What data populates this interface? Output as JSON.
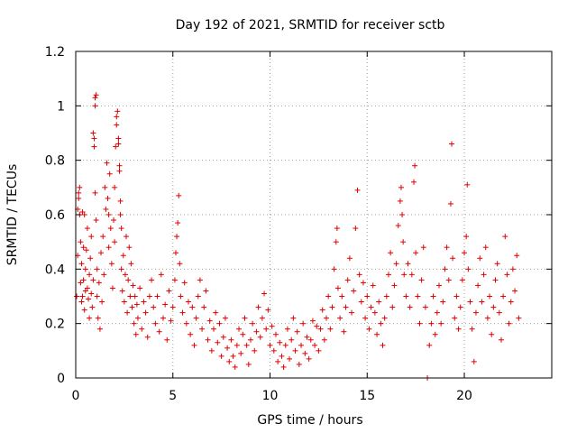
{
  "chart_data": {
    "type": "scatter",
    "title": "Day 192 of 2021, SRMTID for receiver sctb",
    "xlabel": "GPS time / hours",
    "ylabel": "SRMTID / TECUs",
    "xlim": [
      0,
      24.5
    ],
    "ylim": [
      0,
      1.2
    ],
    "x_ticks": [
      0,
      5,
      10,
      15,
      20
    ],
    "x_tick_labels": [
      "0",
      "5",
      "10",
      "15",
      "20"
    ],
    "y_ticks": [
      0,
      0.2,
      0.4,
      0.6,
      0.8,
      1,
      1.2
    ],
    "y_tick_labels": [
      "0",
      "0.2",
      "0.4",
      "0.6",
      "0.8",
      "1",
      "1.2"
    ],
    "grid": true,
    "marker": "plus",
    "color": "#e00000",
    "series": [
      {
        "name": "SRMTID",
        "points": [
          [
            0.05,
            0.3
          ],
          [
            0.1,
            0.45
          ],
          [
            0.1,
            0.62
          ],
          [
            0.15,
            0.66
          ],
          [
            0.15,
            0.68
          ],
          [
            0.2,
            0.7
          ],
          [
            0.2,
            0.6
          ],
          [
            0.25,
            0.5
          ],
          [
            0.25,
            0.35
          ],
          [
            0.3,
            0.42
          ],
          [
            0.3,
            0.28
          ],
          [
            0.35,
            0.61
          ],
          [
            0.35,
            0.3
          ],
          [
            0.4,
            0.48
          ],
          [
            0.4,
            0.36
          ],
          [
            0.45,
            0.6
          ],
          [
            0.45,
            0.25
          ],
          [
            0.5,
            0.4
          ],
          [
            0.5,
            0.32
          ],
          [
            0.55,
            0.47
          ],
          [
            0.6,
            0.33
          ],
          [
            0.6,
            0.55
          ],
          [
            0.65,
            0.29
          ],
          [
            0.7,
            0.38
          ],
          [
            0.7,
            0.22
          ],
          [
            0.75,
            0.44
          ],
          [
            0.8,
            0.31
          ],
          [
            0.8,
            0.52
          ],
          [
            0.85,
            0.26
          ],
          [
            0.9,
            0.36
          ],
          [
            0.9,
            0.9
          ],
          [
            0.95,
            0.88
          ],
          [
            0.95,
            0.85
          ],
          [
            1.0,
            1.03
          ],
          [
            1.0,
            1.0
          ],
          [
            1.05,
            1.04
          ],
          [
            1.0,
            0.68
          ],
          [
            1.05,
            0.58
          ],
          [
            1.1,
            0.4
          ],
          [
            1.1,
            0.3
          ],
          [
            1.15,
            0.22
          ],
          [
            1.2,
            0.35
          ],
          [
            1.25,
            0.18
          ],
          [
            1.3,
            0.46
          ],
          [
            1.35,
            0.28
          ],
          [
            1.4,
            0.52
          ],
          [
            1.45,
            0.38
          ],
          [
            1.5,
            0.7
          ],
          [
            1.55,
            0.62
          ],
          [
            1.6,
            0.79
          ],
          [
            1.65,
            0.66
          ],
          [
            1.7,
            0.6
          ],
          [
            1.7,
            0.48
          ],
          [
            1.75,
            0.75
          ],
          [
            1.8,
            0.55
          ],
          [
            1.85,
            0.42
          ],
          [
            1.9,
            0.33
          ],
          [
            1.95,
            0.58
          ],
          [
            2.0,
            0.5
          ],
          [
            2.0,
            0.7
          ],
          [
            2.05,
            0.85
          ],
          [
            2.1,
            0.93
          ],
          [
            2.1,
            0.96
          ],
          [
            2.15,
            0.98
          ],
          [
            2.2,
            0.88
          ],
          [
            2.2,
            0.86
          ],
          [
            2.25,
            0.78
          ],
          [
            2.25,
            0.76
          ],
          [
            2.3,
            0.65
          ],
          [
            2.3,
            0.6
          ],
          [
            2.35,
            0.55
          ],
          [
            2.35,
            0.4
          ],
          [
            2.4,
            0.32
          ],
          [
            2.45,
            0.45
          ],
          [
            2.5,
            0.28
          ],
          [
            2.55,
            0.38
          ],
          [
            2.6,
            0.52
          ],
          [
            2.65,
            0.24
          ],
          [
            2.7,
            0.36
          ],
          [
            2.75,
            0.48
          ],
          [
            2.8,
            0.3
          ],
          [
            2.85,
            0.42
          ],
          [
            2.9,
            0.26
          ],
          [
            2.95,
            0.34
          ],
          [
            3.0,
            0.2
          ],
          [
            3.05,
            0.3
          ],
          [
            3.1,
            0.16
          ],
          [
            3.15,
            0.27
          ],
          [
            3.2,
            0.22
          ],
          [
            3.3,
            0.33
          ],
          [
            3.4,
            0.18
          ],
          [
            3.5,
            0.28
          ],
          [
            3.6,
            0.24
          ],
          [
            3.7,
            0.15
          ],
          [
            3.8,
            0.3
          ],
          [
            3.9,
            0.36
          ],
          [
            4.0,
            0.26
          ],
          [
            4.1,
            0.2
          ],
          [
            4.2,
            0.3
          ],
          [
            4.3,
            0.17
          ],
          [
            4.4,
            0.38
          ],
          [
            4.5,
            0.22
          ],
          [
            4.6,
            0.27
          ],
          [
            4.7,
            0.14
          ],
          [
            4.8,
            0.32
          ],
          [
            4.9,
            0.21
          ],
          [
            5.0,
            0.26
          ],
          [
            5.1,
            0.36
          ],
          [
            5.15,
            0.46
          ],
          [
            5.2,
            0.52
          ],
          [
            5.25,
            0.57
          ],
          [
            5.3,
            0.67
          ],
          [
            5.35,
            0.42
          ],
          [
            5.4,
            0.3
          ],
          [
            5.5,
            0.24
          ],
          [
            5.6,
            0.35
          ],
          [
            5.7,
            0.2
          ],
          [
            5.8,
            0.28
          ],
          [
            5.9,
            0.16
          ],
          [
            6.0,
            0.26
          ],
          [
            6.1,
            0.12
          ],
          [
            6.2,
            0.22
          ],
          [
            6.3,
            0.3
          ],
          [
            6.4,
            0.36
          ],
          [
            6.5,
            0.18
          ],
          [
            6.6,
            0.26
          ],
          [
            6.7,
            0.32
          ],
          [
            6.8,
            0.14
          ],
          [
            6.9,
            0.21
          ],
          [
            7.0,
            0.1
          ],
          [
            7.1,
            0.18
          ],
          [
            7.2,
            0.24
          ],
          [
            7.3,
            0.13
          ],
          [
            7.4,
            0.2
          ],
          [
            7.5,
            0.08
          ],
          [
            7.6,
            0.15
          ],
          [
            7.7,
            0.22
          ],
          [
            7.8,
            0.11
          ],
          [
            7.9,
            0.06
          ],
          [
            8.0,
            0.14
          ],
          [
            8.1,
            0.08
          ],
          [
            8.2,
            0.04
          ],
          [
            8.3,
            0.12
          ],
          [
            8.4,
            0.18
          ],
          [
            8.5,
            0.09
          ],
          [
            8.6,
            0.16
          ],
          [
            8.7,
            0.22
          ],
          [
            8.8,
            0.12
          ],
          [
            8.9,
            0.05
          ],
          [
            9.0,
            0.14
          ],
          [
            9.1,
            0.2
          ],
          [
            9.2,
            0.1
          ],
          [
            9.3,
            0.17
          ],
          [
            9.4,
            0.26
          ],
          [
            9.5,
            0.15
          ],
          [
            9.6,
            0.22
          ],
          [
            9.7,
            0.31
          ],
          [
            9.8,
            0.18
          ],
          [
            9.9,
            0.25
          ],
          [
            10.0,
            0.12
          ],
          [
            10.1,
            0.19
          ],
          [
            10.2,
            0.1
          ],
          [
            10.3,
            0.16
          ],
          [
            10.4,
            0.06
          ],
          [
            10.5,
            0.13
          ],
          [
            10.6,
            0.08
          ],
          [
            10.7,
            0.04
          ],
          [
            10.8,
            0.12
          ],
          [
            10.9,
            0.18
          ],
          [
            11.0,
            0.07
          ],
          [
            11.1,
            0.14
          ],
          [
            11.2,
            0.22
          ],
          [
            11.3,
            0.1
          ],
          [
            11.4,
            0.17
          ],
          [
            11.5,
            0.05
          ],
          [
            11.6,
            0.12
          ],
          [
            11.7,
            0.2
          ],
          [
            11.8,
            0.09
          ],
          [
            11.9,
            0.15
          ],
          [
            12.0,
            0.07
          ],
          [
            12.1,
            0.14
          ],
          [
            12.2,
            0.21
          ],
          [
            12.3,
            0.12
          ],
          [
            12.4,
            0.19
          ],
          [
            12.5,
            0.1
          ],
          [
            12.6,
            0.18
          ],
          [
            12.7,
            0.25
          ],
          [
            12.8,
            0.14
          ],
          [
            12.9,
            0.22
          ],
          [
            13.0,
            0.3
          ],
          [
            13.1,
            0.18
          ],
          [
            13.2,
            0.26
          ],
          [
            13.3,
            0.4
          ],
          [
            13.4,
            0.5
          ],
          [
            13.45,
            0.55
          ],
          [
            13.5,
            0.33
          ],
          [
            13.6,
            0.22
          ],
          [
            13.7,
            0.3
          ],
          [
            13.8,
            0.17
          ],
          [
            13.9,
            0.26
          ],
          [
            14.0,
            0.36
          ],
          [
            14.1,
            0.44
          ],
          [
            14.2,
            0.24
          ],
          [
            14.3,
            0.32
          ],
          [
            14.4,
            0.55
          ],
          [
            14.5,
            0.69
          ],
          [
            14.6,
            0.38
          ],
          [
            14.7,
            0.28
          ],
          [
            14.8,
            0.35
          ],
          [
            14.9,
            0.22
          ],
          [
            15.0,
            0.3
          ],
          [
            15.1,
            0.18
          ],
          [
            15.2,
            0.26
          ],
          [
            15.3,
            0.34
          ],
          [
            15.4,
            0.24
          ],
          [
            15.5,
            0.16
          ],
          [
            15.6,
            0.28
          ],
          [
            15.7,
            0.2
          ],
          [
            15.8,
            0.12
          ],
          [
            15.9,
            0.22
          ],
          [
            16.0,
            0.3
          ],
          [
            16.1,
            0.38
          ],
          [
            16.2,
            0.46
          ],
          [
            16.3,
            0.26
          ],
          [
            16.4,
            0.34
          ],
          [
            16.5,
            0.42
          ],
          [
            16.6,
            0.56
          ],
          [
            16.7,
            0.65
          ],
          [
            16.75,
            0.7
          ],
          [
            16.8,
            0.6
          ],
          [
            16.85,
            0.5
          ],
          [
            16.9,
            0.38
          ],
          [
            17.0,
            0.3
          ],
          [
            17.1,
            0.42
          ],
          [
            17.2,
            0.26
          ],
          [
            17.3,
            0.38
          ],
          [
            17.4,
            0.72
          ],
          [
            17.45,
            0.78
          ],
          [
            17.5,
            0.46
          ],
          [
            17.6,
            0.3
          ],
          [
            17.7,
            0.2
          ],
          [
            17.8,
            0.36
          ],
          [
            17.9,
            0.48
          ],
          [
            18.0,
            0.26
          ],
          [
            18.1,
            0.0
          ],
          [
            18.2,
            0.12
          ],
          [
            18.3,
            0.2
          ],
          [
            18.4,
            0.3
          ],
          [
            18.5,
            0.16
          ],
          [
            18.6,
            0.24
          ],
          [
            18.7,
            0.34
          ],
          [
            18.8,
            0.2
          ],
          [
            18.9,
            0.28
          ],
          [
            19.0,
            0.4
          ],
          [
            19.1,
            0.48
          ],
          [
            19.2,
            0.36
          ],
          [
            19.3,
            0.64
          ],
          [
            19.35,
            0.86
          ],
          [
            19.4,
            0.44
          ],
          [
            19.5,
            0.22
          ],
          [
            19.6,
            0.3
          ],
          [
            19.7,
            0.18
          ],
          [
            19.8,
            0.26
          ],
          [
            19.9,
            0.36
          ],
          [
            20.0,
            0.46
          ],
          [
            20.1,
            0.52
          ],
          [
            20.15,
            0.71
          ],
          [
            20.2,
            0.4
          ],
          [
            20.3,
            0.28
          ],
          [
            20.4,
            0.18
          ],
          [
            20.5,
            0.06
          ],
          [
            20.6,
            0.24
          ],
          [
            20.7,
            0.34
          ],
          [
            20.8,
            0.44
          ],
          [
            20.9,
            0.28
          ],
          [
            21.0,
            0.38
          ],
          [
            21.1,
            0.48
          ],
          [
            21.2,
            0.22
          ],
          [
            21.3,
            0.3
          ],
          [
            21.4,
            0.16
          ],
          [
            21.5,
            0.26
          ],
          [
            21.6,
            0.36
          ],
          [
            21.7,
            0.42
          ],
          [
            21.8,
            0.24
          ],
          [
            21.9,
            0.14
          ],
          [
            22.0,
            0.3
          ],
          [
            22.1,
            0.52
          ],
          [
            22.2,
            0.38
          ],
          [
            22.3,
            0.2
          ],
          [
            22.4,
            0.28
          ],
          [
            22.5,
            0.4
          ],
          [
            22.6,
            0.32
          ],
          [
            22.7,
            0.45
          ],
          [
            22.8,
            0.22
          ]
        ]
      }
    ]
  }
}
